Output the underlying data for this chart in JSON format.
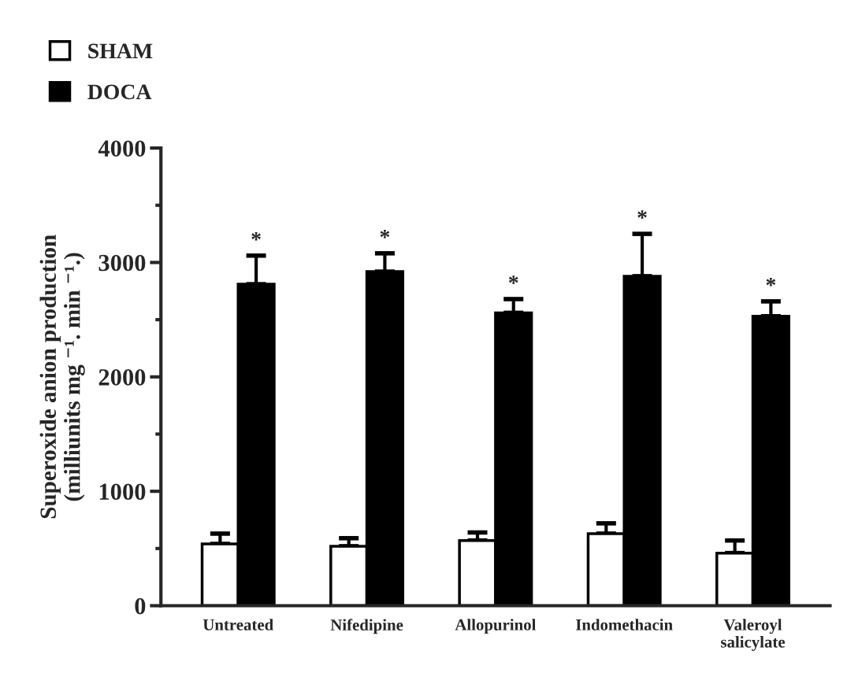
{
  "chart_data": {
    "type": "bar",
    "ylabel": "Superoxide anion production\n(milliunits mg ⁻¹. min ⁻¹.)",
    "categories": [
      "Untreated",
      "Nifedipine",
      "Allopurinol",
      "Indomethacin",
      "Valeroyl\nsalicylate"
    ],
    "series": [
      {
        "name": "SHAM",
        "color": "#ffffff",
        "values": [
          540,
          520,
          570,
          630,
          460
        ],
        "errors": [
          [
            540,
            630
          ],
          [
            520,
            590
          ],
          [
            570,
            640
          ],
          [
            630,
            720
          ],
          [
            460,
            570
          ]
        ]
      },
      {
        "name": "DOCA",
        "color": "#000000",
        "values": [
          2810,
          2920,
          2560,
          2880,
          2530
        ],
        "errors": [
          [
            2810,
            3060
          ],
          [
            2920,
            3080
          ],
          [
            2560,
            2680
          ],
          [
            2880,
            3250
          ],
          [
            2530,
            2660
          ]
        ]
      }
    ],
    "annotations": [
      "*",
      "*",
      "*",
      "*",
      "*"
    ],
    "ylim": [
      0,
      4000
    ],
    "yticks": [
      0,
      {
        "value": 500,
        "label": null
      },
      1000,
      {
        "value": 1500,
        "label": null
      },
      2000,
      {
        "value": 2500,
        "label": null
      },
      3000,
      {
        "value": 3500,
        "label": null
      },
      4000
    ],
    "grid": false,
    "legend": "top left"
  }
}
